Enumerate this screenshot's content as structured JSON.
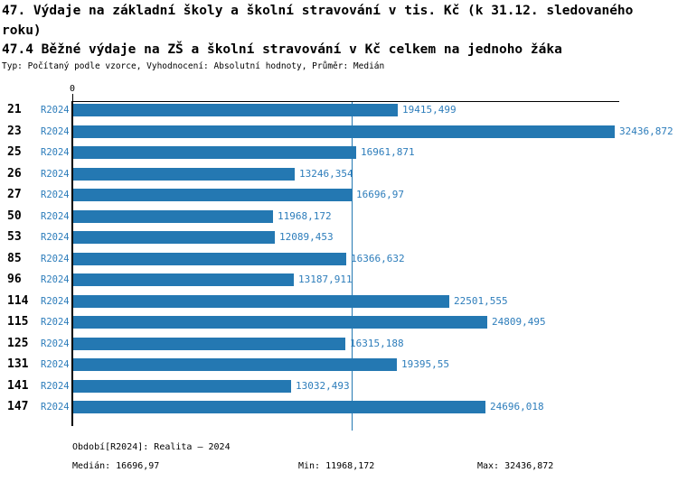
{
  "header": {
    "title_line1": "47. Výdaje na základní školy a školní stravování v tis. Kč (k 31.12. sledovaného roku)",
    "title_line2": "47.4 Běžné výdaje na ZŠ a školní stravování v Kč celkem na jednoho žáka",
    "subtitle": "Typ: Počítaný podle vzorce, Vyhodnocení: Absolutní hodnoty, Průměr: Medián"
  },
  "chart_data": {
    "type": "bar",
    "orientation": "horizontal",
    "title": "47.4 Běžné výdaje na ZŠ a školní stravování v Kč celkem na jednoho žáka",
    "axis_zero_label": "0",
    "series_name": "R2024",
    "categories": [
      "21",
      "23",
      "25",
      "26",
      "27",
      "50",
      "53",
      "85",
      "96",
      "114",
      "115",
      "125",
      "131",
      "141",
      "147"
    ],
    "values": [
      19415.499,
      32436.872,
      16961.871,
      13246.354,
      16696.97,
      11968.172,
      12089.453,
      16366.632,
      13187.911,
      22501.555,
      24809.495,
      16315.188,
      19395.55,
      13032.493,
      24696.018
    ],
    "value_labels": [
      "19415,499",
      "32436,872",
      "16961,871",
      "13246,354",
      "16696,97",
      "11968,172",
      "12089,453",
      "16366,632",
      "13187,911",
      "22501,555",
      "24809,495",
      "16315,188",
      "19395,55",
      "13032,493",
      "24696,018"
    ],
    "xlim": [
      0,
      32436.872
    ],
    "median": 16696.97,
    "grid": false,
    "legend_position": "none",
    "colors": {
      "bar": "#2478b2",
      "median_line": "#2478b2",
      "blue_text": "#2d7dbb",
      "axis": "#000000"
    }
  },
  "footer": {
    "period_label": "Období[R2024]: Realita – 2024",
    "median_label": "Medián: 16696,97",
    "min_label": "Min: 11968,172",
    "max_label": "Max: 32436,872"
  }
}
